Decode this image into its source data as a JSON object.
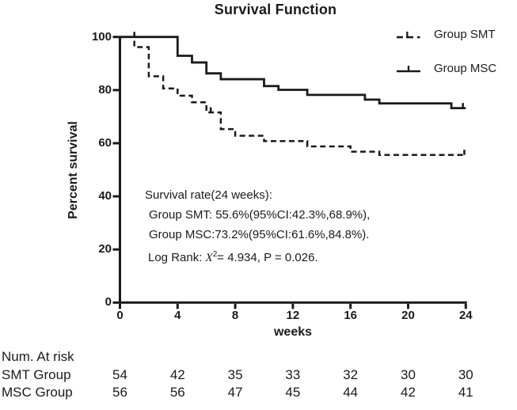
{
  "colors": {
    "ink": "#1a1a1a",
    "background": "#ffffff"
  },
  "chart_data": {
    "type": "line",
    "subtype": "kaplan-meier-step",
    "title": "Survival Function",
    "xlabel": "weeks",
    "ylabel": "Percent survival",
    "xlim": [
      0,
      24
    ],
    "ylim": [
      0,
      100
    ],
    "x_ticks": [
      0,
      4,
      8,
      12,
      16,
      20,
      24
    ],
    "y_ticks": [
      0,
      20,
      40,
      60,
      80,
      100
    ],
    "grid": false,
    "legend_position": "top-right",
    "series": [
      {
        "name": "Group SMT",
        "style": "dashed",
        "final_value_pct": 55.6,
        "steps": [
          [
            0,
            100
          ],
          [
            1,
            96.2
          ],
          [
            2,
            85.2
          ],
          [
            3,
            80.6
          ],
          [
            4,
            77.9
          ],
          [
            5,
            75.4
          ],
          [
            6,
            71.6
          ],
          [
            7,
            65.3
          ],
          [
            8,
            62.8
          ],
          [
            10,
            60.8
          ],
          [
            13,
            58.8
          ],
          [
            16,
            56.8
          ],
          [
            18,
            55.6
          ]
        ],
        "censor_marks": [
          [
            1,
            100
          ],
          [
            6.3,
            71.6
          ],
          [
            23.9,
            55.6
          ]
        ]
      },
      {
        "name": "Group MSC",
        "style": "solid",
        "final_value_pct": 73.2,
        "steps": [
          [
            0,
            100
          ],
          [
            4,
            92.9
          ],
          [
            5,
            90.4
          ],
          [
            6,
            86.3
          ],
          [
            7,
            84.1
          ],
          [
            10,
            81.5
          ],
          [
            11,
            80.1
          ],
          [
            13,
            78.2
          ],
          [
            17,
            76.4
          ],
          [
            18,
            75
          ],
          [
            23,
            73.2
          ]
        ],
        "censor_marks": [
          [
            23.8,
            73.2
          ]
        ]
      }
    ]
  },
  "annotation": {
    "line1": "Survival rate(24 weeks):",
    "line2": "Group SMT: 55.6%(95%CI:42.3%,68.9%),",
    "line3": "Group MSC:73.2%(95%CI:61.6%,84.8%).",
    "log_rank": {
      "prefix": "Log Rank: ",
      "stat": "X",
      "exponent": "2",
      "rest": "= 4.934, P = 0.026."
    }
  },
  "risk_table": {
    "title": "Num. At risk",
    "rows": [
      {
        "label": "SMT Group",
        "counts": [
          "54",
          "42",
          "35",
          "33",
          "32",
          "30",
          "30"
        ]
      },
      {
        "label": "MSC Group",
        "counts": [
          "56",
          "56",
          "47",
          "45",
          "44",
          "42",
          "41"
        ]
      }
    ]
  }
}
